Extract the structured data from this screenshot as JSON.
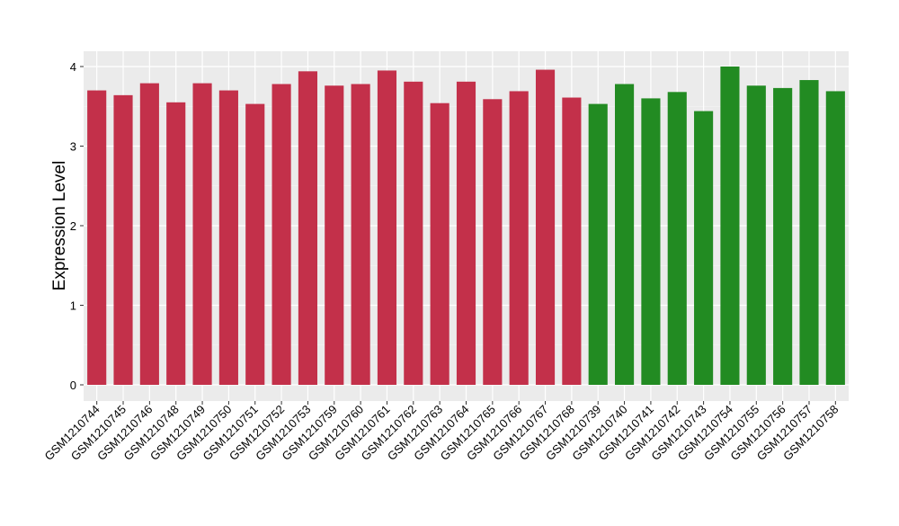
{
  "chart_data": {
    "type": "bar",
    "title": "",
    "xlabel": "",
    "ylabel": "Expression Level",
    "ylim": [
      0,
      4.0
    ],
    "yticks": [
      0,
      1,
      2,
      3,
      4
    ],
    "grid": true,
    "background": "#ebebeb",
    "categories": [
      "GSM1210744",
      "GSM1210745",
      "GSM1210746",
      "GSM1210748",
      "GSM1210749",
      "GSM1210750",
      "GSM1210751",
      "GSM1210752",
      "GSM1210753",
      "GSM1210759",
      "GSM1210760",
      "GSM1210761",
      "GSM1210762",
      "GSM1210763",
      "GSM1210764",
      "GSM1210765",
      "GSM1210766",
      "GSM1210767",
      "GSM1210768",
      "GSM1210739",
      "GSM1210740",
      "GSM1210741",
      "GSM1210742",
      "GSM1210743",
      "GSM1210754",
      "GSM1210755",
      "GSM1210756",
      "GSM1210757",
      "GSM1210758"
    ],
    "values": [
      3.7,
      3.64,
      3.79,
      3.55,
      3.79,
      3.7,
      3.53,
      3.78,
      3.94,
      3.76,
      3.78,
      3.95,
      3.81,
      3.54,
      3.81,
      3.59,
      3.69,
      3.96,
      3.61,
      3.53,
      3.78,
      3.6,
      3.68,
      3.44,
      4.0,
      3.76,
      3.73,
      3.83,
      3.69
    ],
    "groups": [
      "red",
      "red",
      "red",
      "red",
      "red",
      "red",
      "red",
      "red",
      "red",
      "red",
      "red",
      "red",
      "red",
      "red",
      "red",
      "red",
      "red",
      "red",
      "red",
      "green",
      "green",
      "green",
      "green",
      "green",
      "green",
      "green",
      "green",
      "green",
      "green"
    ],
    "colors": {
      "red": "#c3304a",
      "green": "#228b22"
    }
  }
}
